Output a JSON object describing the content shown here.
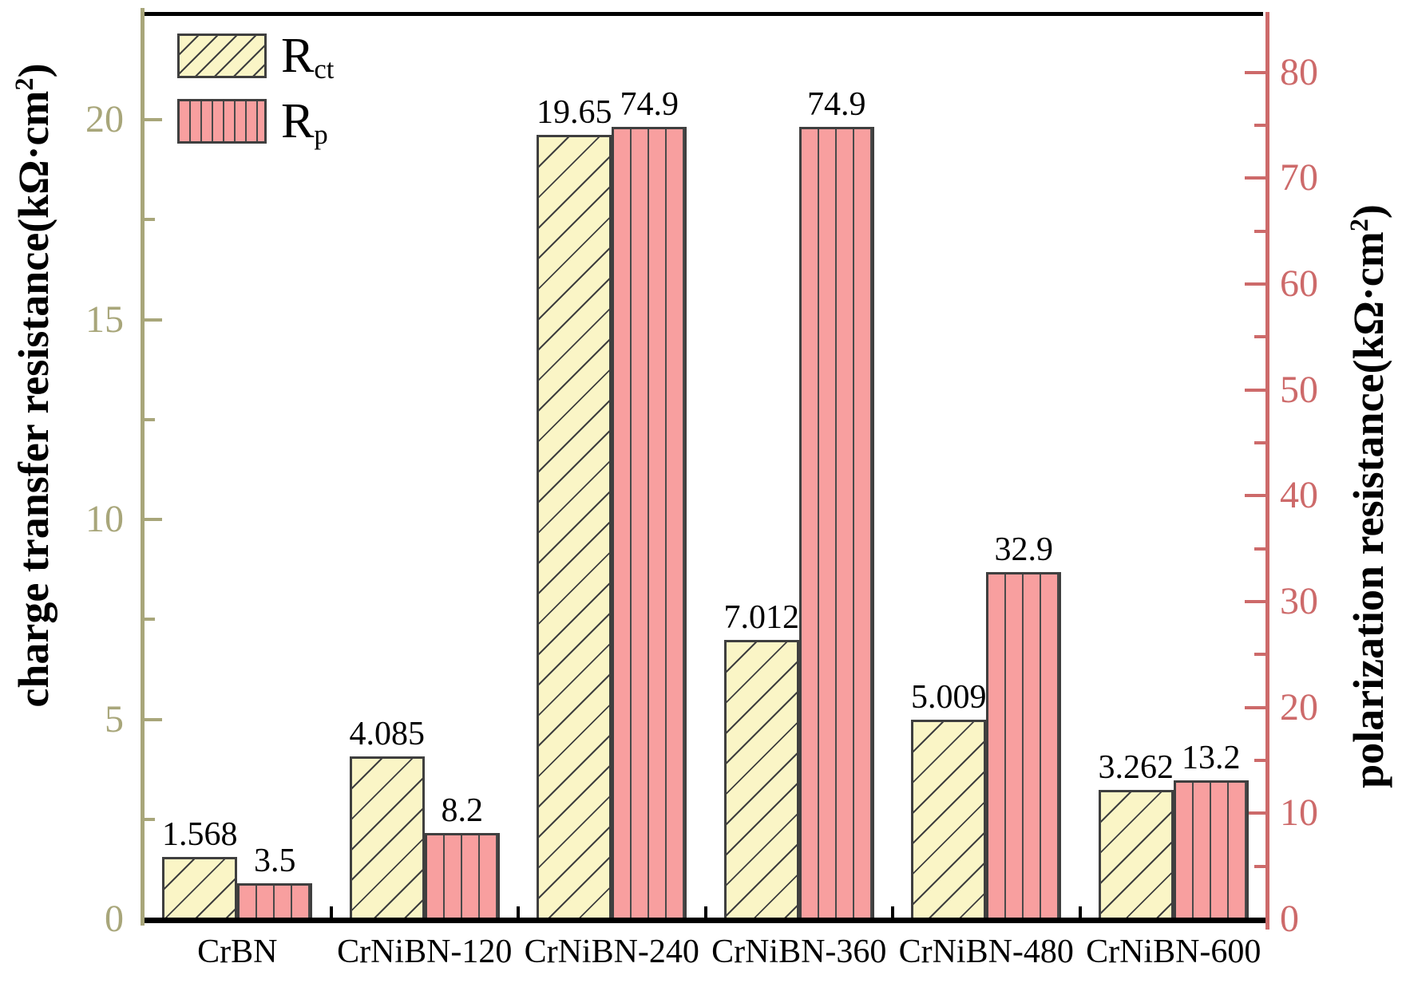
{
  "chart_data": {
    "type": "bar",
    "title": "",
    "categories": [
      "CrBN",
      "CrNiBN-120",
      "CrNiBN-240",
      "CrNiBN-360",
      "CrNiBN-480",
      "CrNiBN-600"
    ],
    "series": [
      {
        "name": "Rct",
        "name_main": "R",
        "name_sub": "ct",
        "axis": "left",
        "values": [
          1.568,
          4.085,
          19.65,
          7.012,
          5.009,
          3.262
        ],
        "labels": [
          "1.568",
          "4.085",
          "19.65",
          "7.012",
          "5.009",
          "3.262"
        ],
        "fill": "#faf5c6",
        "hatch": "diagonal",
        "hatch_color": "#3f3f3f"
      },
      {
        "name": "Rp",
        "name_main": "R",
        "name_sub": "p",
        "axis": "right",
        "values": [
          3.5,
          8.2,
          74.9,
          74.9,
          32.9,
          13.2
        ],
        "labels": [
          "3.5",
          "8.2",
          "74.9",
          "74.9",
          "32.9",
          "13.2"
        ],
        "fill": "#f89f9f",
        "hatch": "vertical",
        "hatch_color": "#4a4a4a"
      }
    ],
    "left_axis": {
      "title_pre": "charge transfer resistance(kΩ·cm",
      "title_sup": "2",
      "title_post": ")",
      "color": "#a8a67a",
      "major_ticks": [
        0,
        5,
        10,
        15,
        20
      ],
      "minor_ticks": [
        2.5,
        7.5,
        12.5,
        17.5
      ],
      "max": 22.7
    },
    "right_axis": {
      "title_pre": "polarization resistance(kΩ·cm",
      "title_sup": "2",
      "title_post": ")",
      "color": "#cd6a6a",
      "major_ticks": [
        0,
        10,
        20,
        30,
        40,
        50,
        60,
        70,
        80
      ],
      "minor_ticks": [
        5,
        15,
        25,
        35,
        45,
        55,
        65,
        75
      ],
      "max": 85.7
    },
    "x_axis": {
      "color": "#000000"
    },
    "bar_border_color": "#3f3f3f",
    "grid": false,
    "legend_position": "upper-left"
  }
}
